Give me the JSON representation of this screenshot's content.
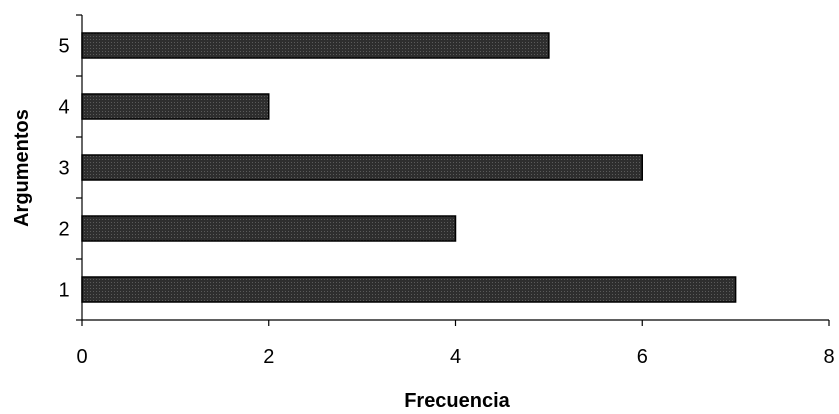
{
  "chart_data": {
    "type": "bar",
    "orientation": "horizontal",
    "categories": [
      "1",
      "2",
      "3",
      "4",
      "5"
    ],
    "values": [
      7,
      4,
      6,
      2,
      5
    ],
    "title": "",
    "xlabel": "Frecuencia",
    "ylabel": "Argumentos",
    "xlim": [
      0,
      8
    ],
    "xticks": [
      0,
      2,
      4,
      6,
      8
    ],
    "grid": false,
    "legend": "none",
    "bar_color": "#2e2e2e"
  }
}
